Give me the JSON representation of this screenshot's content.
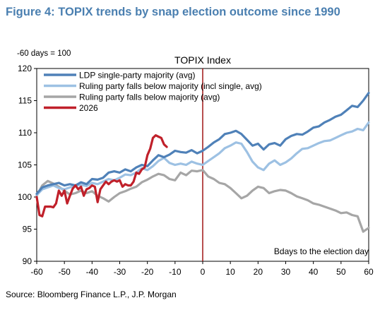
{
  "figure_title": "Figure 4: TOPIX trends by snap election outcome since 1990",
  "source": "Source: Bloomberg Finance L.P., J.P. Morgan",
  "chart_data": {
    "type": "line",
    "title": "TOPIX Index",
    "ylabel": "-60 days = 100",
    "xlabel": "Bdays to the election day",
    "xlim": [
      -60,
      60
    ],
    "ylim": [
      90,
      120
    ],
    "xticks": [
      -60,
      -50,
      -40,
      -30,
      -20,
      -10,
      0,
      10,
      20,
      30,
      40,
      50,
      60
    ],
    "yticks": [
      90,
      95,
      100,
      105,
      110,
      115,
      120
    ],
    "vline_x": 0,
    "vline_color": "#a01515",
    "grid": false,
    "legend_position": "top-left",
    "series": [
      {
        "name": "LDP single-party majority (avg)",
        "color": "#4f81b8",
        "x": [
          -60,
          -58,
          -56,
          -54,
          -52,
          -50,
          -48,
          -46,
          -44,
          -42,
          -40,
          -38,
          -36,
          -34,
          -32,
          -30,
          -28,
          -26,
          -24,
          -22,
          -20,
          -18,
          -16,
          -14,
          -12,
          -10,
          -8,
          -6,
          -4,
          -2,
          0,
          2,
          4,
          6,
          8,
          10,
          12,
          14,
          16,
          18,
          20,
          22,
          24,
          26,
          28,
          30,
          32,
          34,
          36,
          38,
          40,
          42,
          44,
          46,
          48,
          50,
          52,
          54,
          56,
          58,
          60
        ],
        "values": [
          100.5,
          101.5,
          101.8,
          102.0,
          102.2,
          101.8,
          102.0,
          101.8,
          102.3,
          102.0,
          102.8,
          102.7,
          103.0,
          103.8,
          104.0,
          103.8,
          104.3,
          104.0,
          104.6,
          105.0,
          104.8,
          105.7,
          106.5,
          106.2,
          106.6,
          107.2,
          107.0,
          106.9,
          107.3,
          106.8,
          107.2,
          107.8,
          108.5,
          109.0,
          109.8,
          110.0,
          110.3,
          109.8,
          108.9,
          108.0,
          108.3,
          107.4,
          108.2,
          108.4,
          108.0,
          109.0,
          109.5,
          109.8,
          109.7,
          110.2,
          110.8,
          111.0,
          111.6,
          112.0,
          112.5,
          112.8,
          113.5,
          114.2,
          114.0,
          115.0,
          116.2
        ]
      },
      {
        "name": "Ruling party falls below majority (incl single, avg)",
        "color": "#9dc1e3",
        "x": [
          -60,
          -58,
          -56,
          -54,
          -52,
          -50,
          -48,
          -46,
          -44,
          -42,
          -40,
          -38,
          -36,
          -34,
          -32,
          -30,
          -28,
          -26,
          -24,
          -22,
          -20,
          -18,
          -16,
          -14,
          -12,
          -10,
          -8,
          -6,
          -4,
          -2,
          0,
          2,
          4,
          6,
          8,
          10,
          12,
          14,
          16,
          18,
          20,
          22,
          24,
          26,
          28,
          30,
          32,
          34,
          36,
          38,
          40,
          42,
          44,
          46,
          48,
          50,
          52,
          54,
          56,
          58,
          60
        ],
        "values": [
          100.3,
          101.2,
          101.5,
          101.8,
          101.4,
          101.2,
          101.5,
          101.8,
          101.9,
          101.7,
          102.2,
          102.0,
          102.4,
          102.8,
          102.6,
          103.0,
          103.5,
          103.4,
          103.8,
          104.5,
          104.2,
          104.8,
          105.6,
          106.1,
          105.3,
          105.0,
          105.2,
          105.0,
          105.5,
          105.2,
          105.0,
          105.6,
          106.2,
          106.8,
          107.6,
          108.0,
          108.5,
          108.3,
          107.0,
          105.5,
          104.6,
          104.2,
          105.2,
          105.7,
          105.0,
          105.4,
          106.0,
          106.8,
          107.5,
          107.6,
          108.0,
          108.4,
          108.7,
          108.8,
          109.2,
          109.6,
          110.0,
          110.2,
          110.6,
          110.4,
          111.6
        ]
      },
      {
        "name": "Ruling party falls below majority (avg)",
        "color": "#a6a6a6",
        "x": [
          -60,
          -58,
          -56,
          -54,
          -52,
          -50,
          -48,
          -46,
          -44,
          -42,
          -40,
          -38,
          -36,
          -34,
          -32,
          -30,
          -28,
          -26,
          -24,
          -22,
          -20,
          -18,
          -16,
          -14,
          -12,
          -10,
          -8,
          -6,
          -4,
          -2,
          0,
          2,
          4,
          6,
          8,
          10,
          12,
          14,
          16,
          18,
          20,
          22,
          24,
          26,
          28,
          30,
          32,
          34,
          36,
          38,
          40,
          42,
          44,
          46,
          48,
          50,
          52,
          54,
          56,
          58,
          60
        ],
        "values": [
          100.2,
          101.8,
          102.5,
          102.1,
          101.6,
          101.0,
          100.4,
          100.6,
          101.0,
          100.6,
          100.9,
          100.2,
          99.8,
          99.3,
          100.0,
          100.6,
          100.9,
          101.3,
          101.6,
          102.3,
          102.7,
          103.2,
          103.6,
          103.4,
          102.8,
          102.6,
          103.8,
          103.4,
          104.1,
          104.0,
          104.2,
          103.2,
          102.8,
          102.2,
          102.0,
          101.4,
          100.6,
          99.8,
          100.2,
          101.0,
          101.6,
          101.4,
          100.6,
          100.9,
          101.1,
          101.0,
          100.6,
          100.1,
          99.8,
          99.5,
          99.0,
          98.8,
          98.5,
          98.2,
          97.9,
          97.5,
          97.6,
          97.2,
          97.0,
          94.6,
          95.2
        ]
      },
      {
        "name": "2026",
        "color": "#c0202a",
        "x": [
          -60,
          -59,
          -58,
          -57,
          -56,
          -55,
          -54,
          -53,
          -52,
          -51,
          -50,
          -49,
          -48,
          -47,
          -46,
          -45,
          -44,
          -43,
          -42,
          -41,
          -40,
          -39,
          -38,
          -37,
          -36,
          -35,
          -34,
          -33,
          -32,
          -31,
          -30,
          -29,
          -28,
          -27,
          -26,
          -25,
          -24,
          -23,
          -22,
          -21,
          -20,
          -19,
          -18,
          -17,
          -16,
          -15,
          -14,
          -13
        ],
        "values": [
          100.0,
          97.2,
          97.0,
          98.5,
          98.5,
          98.5,
          98.4,
          99.0,
          101.0,
          100.2,
          101.0,
          99.0,
          100.2,
          101.3,
          101.8,
          101.2,
          101.6,
          100.2,
          101.2,
          101.4,
          101.8,
          101.6,
          99.2,
          101.2,
          101.8,
          102.4,
          102.0,
          102.4,
          102.6,
          102.4,
          102.6,
          101.6,
          102.0,
          101.8,
          101.8,
          102.4,
          103.8,
          103.6,
          104.3,
          104.6,
          106.5,
          107.5,
          109.2,
          109.6,
          109.4,
          109.2,
          108.2,
          107.8
        ]
      }
    ]
  }
}
